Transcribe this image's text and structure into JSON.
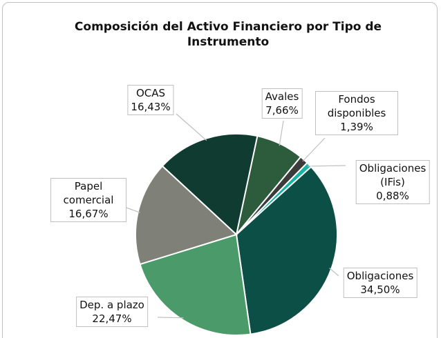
{
  "chart_data": {
    "type": "pie",
    "title": "Composición del Activo Financiero por Tipo de Instrumento",
    "categories": [
      "Avales",
      "Fondos disponibles",
      "Obligaciones (IFis)",
      "Obligaciones",
      "Dep. a plazo",
      "Papel comercial",
      "OCAS"
    ],
    "values": [
      7.66,
      1.39,
      0.88,
      34.5,
      22.47,
      16.67,
      16.43
    ],
    "value_labels": [
      "7,66%",
      "1,39%",
      "0,88%",
      "34,50%",
      "22,47%",
      "16,67%",
      "16,43%"
    ],
    "colors": [
      "#2d5c3d",
      "#3b3b3b",
      "#19b3a3",
      "#0c4f47",
      "#4b9a69",
      "#7f8077",
      "#0f3b30"
    ]
  }
}
